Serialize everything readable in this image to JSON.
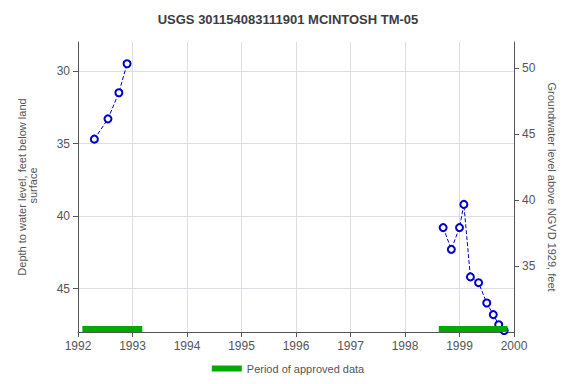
{
  "chart_data": {
    "type": "line",
    "title": "USGS 301154083111901 MCINTOSH TM-05",
    "ylabel": "Depth to water level, feet below land\n surface",
    "y2label": "Groundwater level above NGVD 1929, feet",
    "xlim": [
      1992,
      2000
    ],
    "xticks": [
      1992,
      1993,
      1994,
      1995,
      1996,
      1997,
      1998,
      1999,
      2000
    ],
    "ylim": [
      48,
      28
    ],
    "yticks": [
      30,
      35,
      40,
      45
    ],
    "y2lim": [
      30,
      52
    ],
    "y2ticks": [
      50,
      45,
      40,
      35
    ],
    "grid": true,
    "legend": "bottom",
    "series": [
      {
        "color": "#0000cc",
        "line_style": "dashed",
        "marker": "circle",
        "x": [
          1992.3,
          1992.55,
          1992.75,
          1992.9
        ],
        "values": [
          34.7,
          33.3,
          31.5,
          29.5
        ]
      },
      {
        "color": "#0000cc",
        "line_style": "dashed",
        "marker": "circle",
        "x": [
          1998.7,
          1998.85,
          1999.0,
          1999.08,
          1999.2,
          1999.35,
          1999.5,
          1999.62,
          1999.72,
          1999.82
        ],
        "values": [
          40.8,
          42.3,
          40.8,
          39.2,
          44.2,
          44.6,
          46.0,
          46.8,
          47.5,
          47.9
        ]
      }
    ],
    "periods": {
      "name": "Period of approved data",
      "color": "#00aa00",
      "ranges": [
        [
          1992.08,
          1993.18
        ],
        [
          1998.62,
          1999.88
        ]
      ]
    }
  }
}
